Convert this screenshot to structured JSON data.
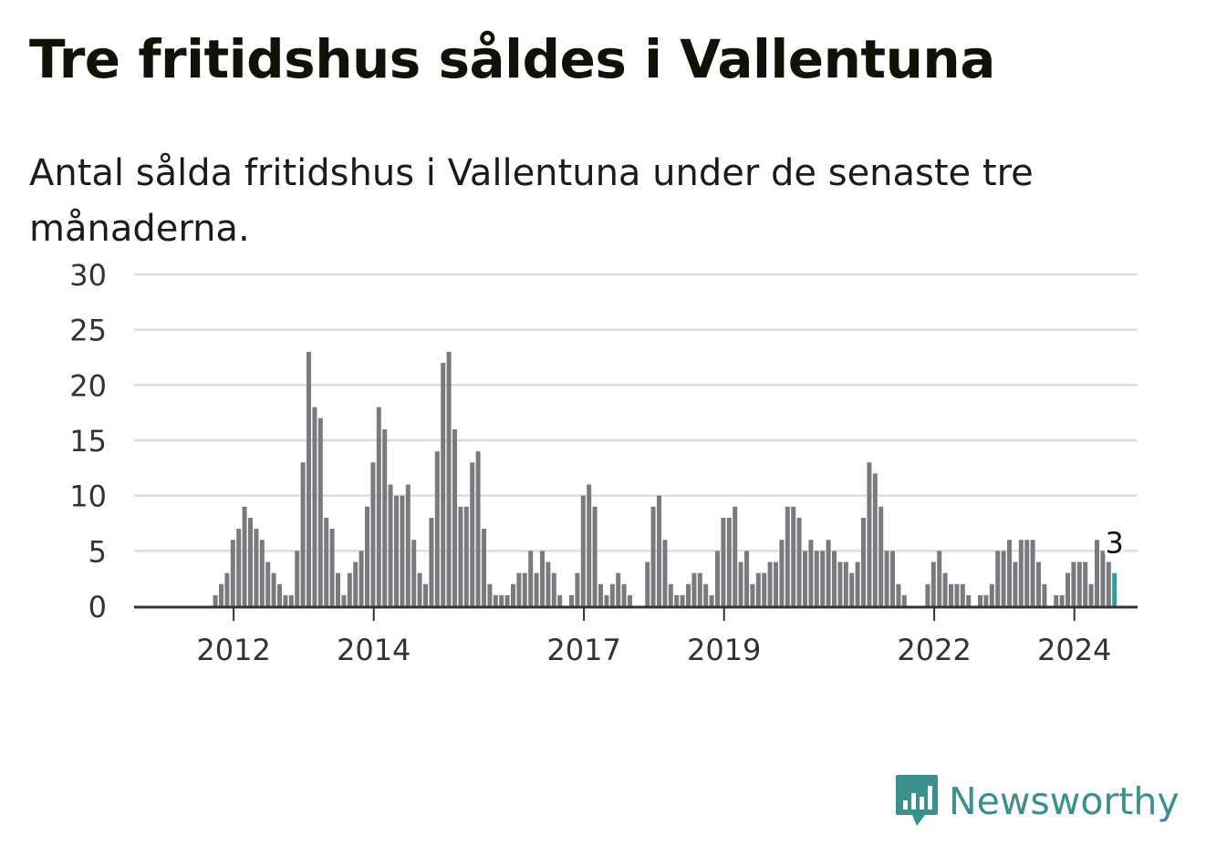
{
  "header": {
    "title": "Tre fritidshus såldes i Vallentuna",
    "subtitle": "Antal sålda fritidshus i Vallentuna under de senaste tre månaderna."
  },
  "chart_data": {
    "type": "bar",
    "start": "2011-01",
    "x_ticks": [
      "2012",
      "2014",
      "2017",
      "2019",
      "2022",
      "2024"
    ],
    "y_ticks": [
      0,
      5,
      10,
      15,
      20,
      25,
      30
    ],
    "ylim": [
      0,
      30
    ],
    "grid": true,
    "values": [
      0,
      0,
      0,
      0,
      0,
      0,
      0,
      0,
      0,
      1,
      2,
      3,
      6,
      7,
      9,
      8,
      7,
      6,
      4,
      3,
      2,
      1,
      1,
      5,
      13,
      23,
      18,
      17,
      8,
      7,
      3,
      1,
      3,
      4,
      5,
      9,
      13,
      18,
      16,
      11,
      10,
      10,
      11,
      6,
      3,
      2,
      8,
      14,
      22,
      23,
      16,
      9,
      9,
      13,
      14,
      7,
      2,
      1,
      1,
      1,
      2,
      3,
      3,
      5,
      3,
      5,
      4,
      3,
      1,
      0,
      1,
      3,
      10,
      11,
      9,
      2,
      1,
      2,
      3,
      2,
      1,
      0,
      0,
      4,
      9,
      10,
      6,
      2,
      1,
      1,
      2,
      3,
      3,
      2,
      1,
      5,
      8,
      8,
      9,
      4,
      5,
      2,
      3,
      3,
      4,
      4,
      6,
      9,
      9,
      8,
      5,
      6,
      5,
      5,
      6,
      5,
      4,
      4,
      3,
      4,
      8,
      13,
      12,
      9,
      5,
      5,
      2,
      1,
      0,
      0,
      0,
      2,
      4,
      5,
      3,
      2,
      2,
      2,
      1,
      0,
      1,
      1,
      2,
      5,
      5,
      6,
      4,
      6,
      6,
      6,
      4,
      2,
      0,
      1,
      1,
      3,
      4,
      4,
      4,
      2,
      6,
      5,
      4,
      3
    ],
    "highlight_label": "3",
    "bar_color": "#7a797d",
    "highlight_color": "#2aa0a0"
  },
  "brand": {
    "name": "Newsworthy",
    "logo_icon": "bar-chart-speech-bubble-icon",
    "color": "#3a8f8f"
  }
}
